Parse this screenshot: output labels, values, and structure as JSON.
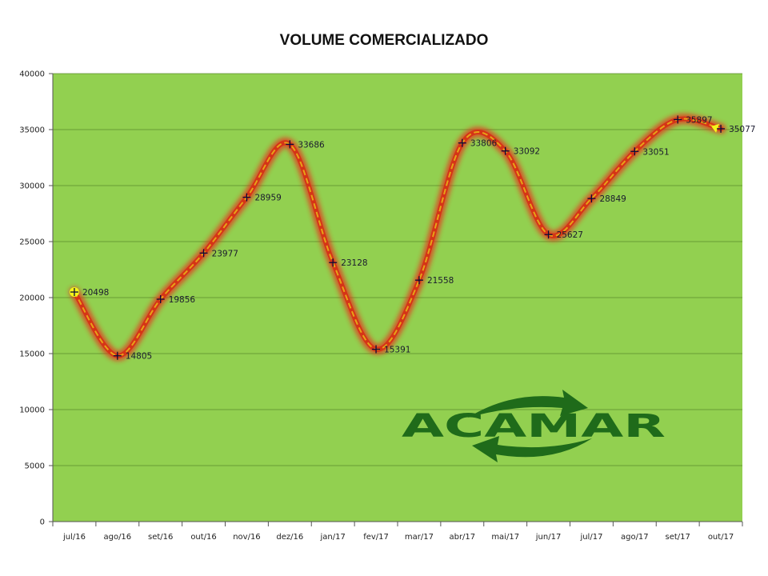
{
  "chart_data": {
    "type": "line",
    "title": "VOLUME COMERCIALIZADO",
    "categories": [
      "jul/16",
      "ago/16",
      "set/16",
      "out/16",
      "nov/16",
      "dez/16",
      "jan/17",
      "fev/17",
      "mar/17",
      "abr/17",
      "mai/17",
      "jun/17",
      "jul/17",
      "ago/17",
      "set/17",
      "out/17"
    ],
    "series": [
      {
        "values": [
          20498,
          14805,
          19856,
          23977,
          28959,
          33686,
          23128,
          15391,
          21558,
          33806,
          33092,
          25627,
          28849,
          33051,
          35897,
          35077
        ]
      }
    ],
    "data_labels": [
      "20498",
      "14805",
      "19856",
      "23977",
      "28959",
      "33686",
      "23128",
      "15391",
      "21558",
      "33806",
      "33092",
      "25627",
      "28849",
      "33051",
      "35897",
      "35077"
    ],
    "ylim": [
      0,
      40000
    ],
    "yticks": [
      0,
      5000,
      10000,
      15000,
      20000,
      25000,
      30000,
      35000,
      40000
    ],
    "ytick_labels": [
      "0",
      "5000",
      "10000",
      "15000",
      "20000",
      "25000",
      "30000",
      "35000",
      "40000"
    ],
    "grid": true,
    "legend": "none",
    "xlabel": "",
    "ylabel": ""
  },
  "logo": {
    "text": "ACAMAR"
  },
  "colors": {
    "plot_background": "#92d050",
    "line": "#e8a317",
    "glow": "#e8301a",
    "marker": "#0a0a3a",
    "highlight": "#f5f51a",
    "logo": "#1f6b1a"
  }
}
